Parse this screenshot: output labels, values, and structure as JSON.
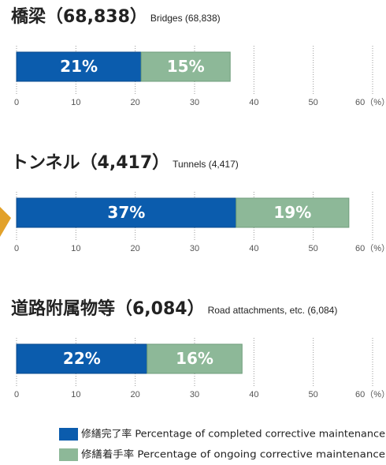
{
  "chart_data": [
    {
      "type": "bar",
      "title": "橋梁（68,838）",
      "subtitle": "Bridges (68,838)",
      "series": [
        {
          "values": [
            21
          ],
          "value_labels": [
            "21%"
          ]
        },
        {
          "values": [
            15
          ],
          "value_labels": [
            "15%"
          ]
        }
      ],
      "xlim": [
        0,
        60
      ],
      "xticks": [
        0,
        10,
        20,
        30,
        40,
        50,
        {
          "value": 60,
          "label": "60（%）"
        }
      ],
      "grid": true
    },
    {
      "type": "bar",
      "title": "トンネル（4,417）",
      "subtitle": "Tunnels (4,417)",
      "series": [
        {
          "values": [
            37
          ],
          "value_labels": [
            "37%"
          ]
        },
        {
          "values": [
            19
          ],
          "value_labels": [
            "19%"
          ]
        }
      ],
      "xlim": [
        0,
        60
      ],
      "xticks": [
        0,
        10,
        20,
        30,
        40,
        50,
        {
          "value": 60,
          "label": "60（%）"
        }
      ],
      "grid": true
    },
    {
      "type": "bar",
      "title": "道路附属物等（6,084）",
      "subtitle": "Road attachments, etc. (6,084)",
      "series": [
        {
          "values": [
            22
          ],
          "value_labels": [
            "22%"
          ]
        },
        {
          "values": [
            16
          ],
          "value_labels": [
            "16%"
          ]
        }
      ],
      "xlim": [
        0,
        60
      ],
      "xticks": [
        0,
        10,
        20,
        30,
        40,
        50,
        {
          "value": 60,
          "label": "60（%）"
        }
      ],
      "grid": true
    }
  ],
  "legend": [
    {
      "name": "修繕完了率  Percentage of completed corrective maintenance",
      "color": "#0b5cad"
    },
    {
      "name": "修繕着手率  Percentage of ongoing corrective maintenance",
      "color": "#8db898"
    }
  ]
}
